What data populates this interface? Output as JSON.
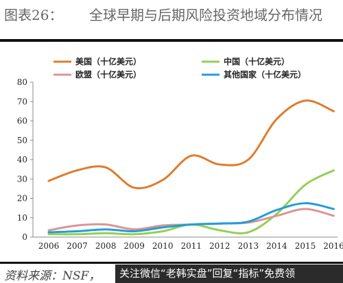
{
  "header": {
    "figure_label": "图表26：",
    "title": "全球早期与后期风险投资地域分布情况"
  },
  "footer": {
    "source": "资料来源：NSF，",
    "watermark": "关注微信“老韩实盘”回复“指标”免费领"
  },
  "chart_data": {
    "type": "line",
    "title": "",
    "xlabel": "",
    "ylabel": "",
    "x": [
      2006,
      2007,
      2008,
      2009,
      2010,
      2011,
      2012,
      2013,
      2014,
      2015,
      2016
    ],
    "ylim": [
      0,
      80
    ],
    "yticks": [
      0,
      10,
      20,
      30,
      40,
      50,
      60,
      70,
      80
    ],
    "grid": false,
    "legend_position": "top",
    "series": [
      {
        "name": "美国（十亿美元）",
        "color": "#E07B2A",
        "values": [
          29,
          34.5,
          36,
          25.5,
          29.5,
          42,
          37.5,
          40,
          61,
          70.5,
          65
        ]
      },
      {
        "name": "中国（十亿美元）",
        "color": "#92D050",
        "values": [
          1.5,
          1.5,
          2,
          1.5,
          3,
          6.5,
          3.5,
          2.5,
          12,
          27,
          34.5
        ]
      },
      {
        "name": "欧盟（十亿美元）",
        "color": "#D99594",
        "values": [
          3.5,
          6,
          6.5,
          4,
          6,
          6.5,
          7,
          7.5,
          11,
          14.5,
          11
        ]
      },
      {
        "name": "其他国家（十亿美元）",
        "color": "#1F9ED9",
        "values": [
          2.5,
          3,
          4,
          3,
          5,
          6.5,
          7,
          8,
          14,
          17.5,
          14.5
        ]
      }
    ]
  }
}
